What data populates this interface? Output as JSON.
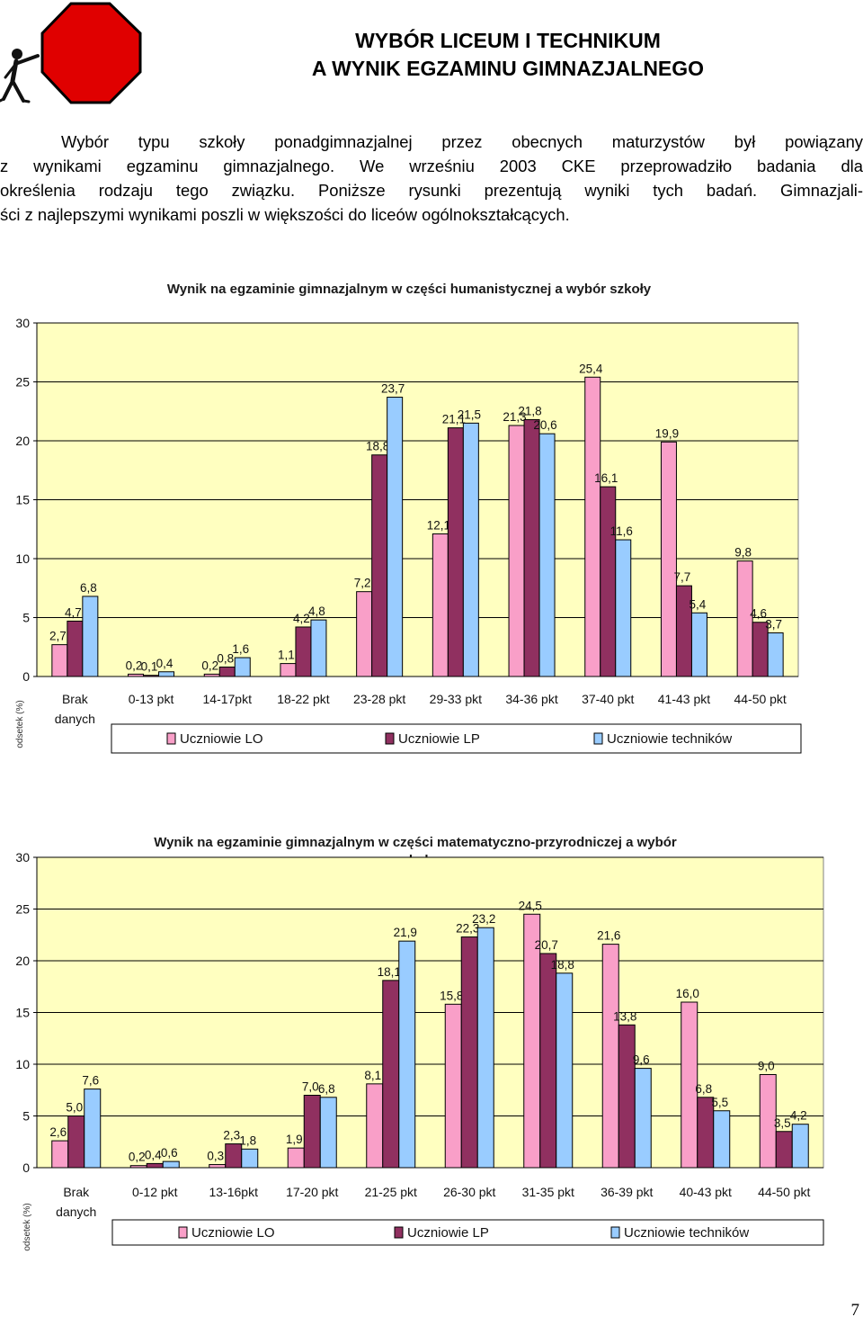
{
  "header": {
    "title_line1": "WYBÓR LICEUM I TECHNIKUM",
    "title_line2": "A WYNIK EGZAMINU GIMNAZJALNEGO"
  },
  "intro": {
    "lines": [
      "Wybór typu szkoły ponadgimnazjalnej przez obecnych maturzystów był powiązany",
      "z wynikami egzaminu gimnazjalnego. We wrześniu 2003 CKE przeprowadziło badania dla",
      "określenia rodzaju tego związku. Poniższe rysunki prezentują wyniki tych badań. Gimnazjali-",
      "ści z najlepszymi wynikami poszli w większości do liceów ogólnokształcących."
    ]
  },
  "colors": {
    "plot_background": "#ffffc0",
    "series": [
      "#f99fc8",
      "#903060",
      "#99ccff"
    ],
    "logo_octagon": "#e00000"
  },
  "chart_data": [
    {
      "type": "bar",
      "title": "Wynik na egzaminie gimnazjalnym w części humanistycznej a wybór szkoły",
      "ylabel": "odsetek (%)",
      "ylim": [
        0,
        30
      ],
      "yticks": [
        "0",
        "5",
        "10",
        "15",
        "20",
        "25",
        "30"
      ],
      "grid": true,
      "legend": "bottom",
      "categories": [
        "Brak danych",
        "0-13 pkt",
        "14-17pkt",
        "18-22 pkt",
        "23-28 pkt",
        "29-33 pkt",
        "34-36 pkt",
        "37-40 pkt",
        "41-43 pkt",
        "44-50 pkt"
      ],
      "series": [
        {
          "name": "Uczniowie LO",
          "values": [
            2.7,
            0.2,
            0.2,
            1.1,
            7.2,
            12.1,
            21.3,
            25.4,
            19.9,
            9.8
          ],
          "labels": [
            "2,7",
            "0,2",
            "0,2",
            "1,1",
            "7,2",
            "12,1",
            "21,3",
            "25,4",
            "19,9",
            "9,8"
          ]
        },
        {
          "name": "Uczniowie LP",
          "values": [
            4.7,
            0.1,
            0.8,
            4.2,
            18.8,
            21.1,
            21.8,
            16.1,
            7.7,
            4.6
          ],
          "labels": [
            "4,7",
            "0,1",
            "0,8",
            "4,2",
            "18,8",
            "21,1",
            "21,8",
            "16,1",
            "7,7",
            "4,6"
          ]
        },
        {
          "name": "Uczniowie techników",
          "values": [
            6.8,
            0.4,
            1.6,
            4.8,
            23.7,
            21.5,
            20.6,
            11.6,
            5.4,
            3.7
          ],
          "labels": [
            "6,8",
            "0,4",
            "1,6",
            "4,8",
            "23,7",
            "21,5",
            "20,6",
            "11,6",
            "5,4",
            "3,7"
          ]
        }
      ]
    },
    {
      "type": "bar",
      "title": "Wynik na egzaminie gimnazjalnym w części matematyczno-przyrodniczej a wybór szkoły",
      "ylabel": "odsetek (%)",
      "ylim": [
        0,
        30
      ],
      "yticks": [
        "0",
        "5",
        "10",
        "15",
        "20",
        "25",
        "30"
      ],
      "grid": true,
      "legend": "bottom",
      "categories": [
        "Brak danych",
        "0-12 pkt",
        "13-16pkt",
        "17-20 pkt",
        "21-25 pkt",
        "26-30 pkt",
        "31-35 pkt",
        "36-39 pkt",
        "40-43 pkt",
        "44-50 pkt"
      ],
      "series": [
        {
          "name": "Uczniowie LO",
          "values": [
            2.6,
            0.2,
            0.3,
            1.9,
            8.1,
            15.8,
            24.5,
            21.6,
            16.0,
            9.0
          ],
          "labels": [
            "2,6",
            "0,2",
            "0,3",
            "1,9",
            "8,1",
            "15,8",
            "24,5",
            "21,6",
            "16,0",
            "9,0"
          ]
        },
        {
          "name": "Uczniowie LP",
          "values": [
            5.0,
            0.4,
            2.3,
            7.0,
            18.1,
            22.3,
            20.7,
            13.8,
            6.8,
            3.5
          ],
          "labels": [
            "5,0",
            "0,4",
            "2,3",
            "7,0",
            "18,1",
            "22,3",
            "20,7",
            "13,8",
            "6,8",
            "3,5"
          ]
        },
        {
          "name": "Uczniowie techników",
          "values": [
            7.6,
            0.6,
            1.8,
            6.8,
            21.9,
            23.2,
            18.8,
            9.6,
            5.5,
            4.2
          ],
          "labels": [
            "7,6",
            "0,6",
            "1,8",
            "6,8",
            "21,9",
            "23,2",
            "18,8",
            "9,6",
            "5,5",
            "4,2"
          ]
        }
      ]
    }
  ],
  "footer": {
    "page_number": "7"
  }
}
